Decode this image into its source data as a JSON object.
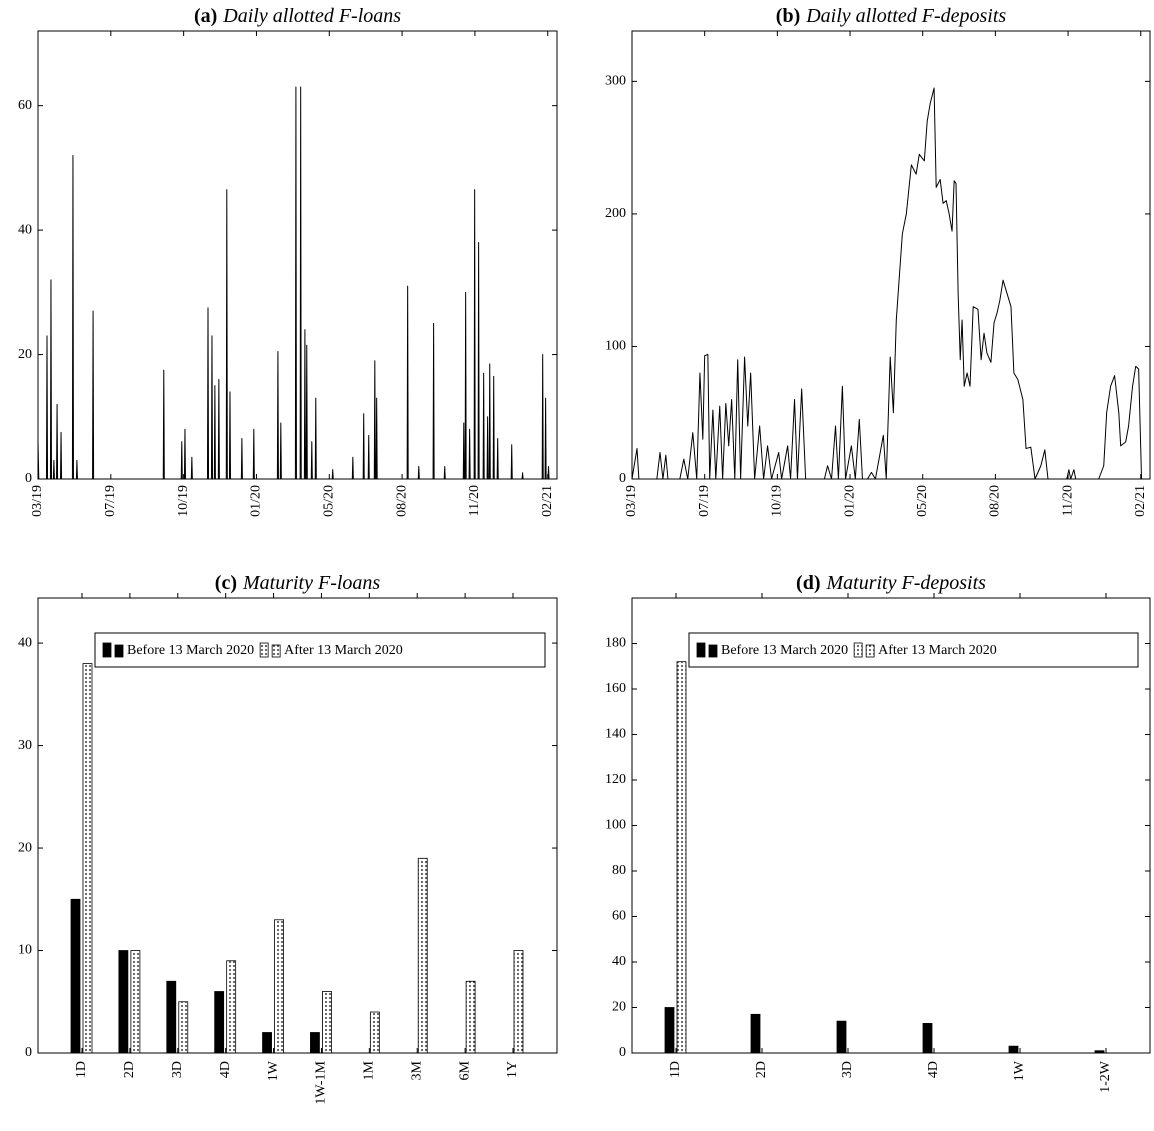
{
  "chart_data": [
    {
      "type": "line",
      "panel": "(a)",
      "title": "Daily allotted F-loans",
      "color": "#000000",
      "xlim": [
        2019.2,
        2021.16
      ],
      "ylim": [
        0,
        72
      ],
      "yticks": [
        0,
        20,
        40,
        60
      ],
      "xticks": [
        {
          "value": 2019.2,
          "label": "03/19"
        },
        {
          "value": 2019.475,
          "label": "07/19"
        },
        {
          "value": 2019.75,
          "label": "10/19"
        },
        {
          "value": 2020.025,
          "label": "01/20"
        },
        {
          "value": 2020.3,
          "label": "05/20"
        },
        {
          "value": 2020.575,
          "label": "08/20"
        },
        {
          "value": 2020.85,
          "label": "11/20"
        },
        {
          "value": 2021.125,
          "label": "02/21"
        }
      ],
      "x": [
        2019.2,
        2019.203,
        2019.232,
        2019.234,
        2019.236,
        2019.247,
        2019.249,
        2019.251,
        2019.258,
        2019.26,
        2019.262,
        2019.27,
        2019.272,
        2019.274,
        2019.285,
        2019.287,
        2019.289,
        2019.33,
        2019.332,
        2019.334,
        2019.345,
        2019.347,
        2019.349,
        2019.406,
        2019.408,
        2019.41,
        2019.673,
        2019.675,
        2019.677,
        2019.741,
        2019.743,
        2019.745,
        2019.753,
        2019.755,
        2019.757,
        2019.779,
        2019.781,
        2019.783,
        2019.84,
        2019.842,
        2019.844,
        2019.855,
        2019.857,
        2019.859,
        2019.866,
        2019.868,
        2019.87,
        2019.881,
        2019.883,
        2019.885,
        2019.911,
        2019.913,
        2019.915,
        2019.923,
        2019.925,
        2019.927,
        2019.968,
        2019.97,
        2019.972,
        2020.013,
        2020.015,
        2020.017,
        2020.104,
        2020.106,
        2020.108,
        2020.115,
        2020.117,
        2020.119,
        2020.172,
        2020.174,
        2020.176,
        2020.19,
        2020.192,
        2020.194,
        2020.206,
        2020.208,
        2020.21,
        2020.213,
        2020.215,
        2020.217,
        2020.232,
        2020.234,
        2020.236,
        2020.247,
        2020.249,
        2020.251,
        2020.311,
        2020.313,
        2020.315,
        2020.387,
        2020.389,
        2020.391,
        2020.428,
        2020.43,
        2020.432,
        2020.447,
        2020.449,
        2020.451,
        2020.47,
        2020.472,
        2020.474,
        2020.477,
        2020.479,
        2020.481,
        2020.594,
        2020.596,
        2020.598,
        2020.636,
        2020.638,
        2020.64,
        2020.692,
        2020.694,
        2020.696,
        2020.734,
        2020.736,
        2020.738,
        2020.806,
        2020.808,
        2020.81,
        2020.813,
        2020.815,
        2020.817,
        2020.828,
        2020.83,
        2020.832,
        2020.847,
        2020.849,
        2020.851,
        2020.862,
        2020.864,
        2020.866,
        2020.881,
        2020.883,
        2020.885,
        2020.896,
        2020.898,
        2020.9,
        2020.904,
        2020.906,
        2020.908,
        2020.919,
        2020.921,
        2020.923,
        2020.934,
        2020.936,
        2020.938,
        2020.987,
        2020.989,
        2020.991,
        2021.028,
        2021.03,
        2021.032,
        2021.104,
        2021.106,
        2021.108,
        2021.115,
        2021.117,
        2021.119,
        2021.126,
        2021.128,
        2021.13,
        2021.16
      ],
      "values": [
        6,
        0,
        0,
        23,
        0,
        0,
        32,
        0,
        0,
        3,
        0,
        0,
        12,
        0,
        0,
        7.5,
        0,
        0,
        52,
        0,
        0,
        3,
        0,
        0,
        27,
        0,
        0,
        17.5,
        0,
        0,
        6,
        0,
        0,
        8,
        0,
        0,
        3.5,
        0,
        0,
        27.5,
        0,
        0,
        23,
        0,
        0,
        15,
        0,
        0,
        16,
        0,
        0,
        46.5,
        0,
        0,
        14,
        0,
        0,
        6.5,
        0,
        0,
        8,
        0,
        0,
        20.5,
        0,
        0,
        9,
        0,
        0,
        63,
        0,
        0,
        63,
        0,
        0,
        24,
        0,
        0,
        21.5,
        0,
        0,
        6,
        0,
        0,
        13,
        0,
        0,
        1.5,
        0,
        0,
        3.5,
        0,
        0,
        10.5,
        0,
        0,
        7,
        0,
        0,
        19,
        0,
        0,
        13,
        0,
        0,
        31,
        0,
        0,
        2,
        0,
        0,
        25,
        0,
        0,
        2,
        0,
        0,
        9,
        0,
        0,
        30,
        0,
        0,
        8,
        0,
        0,
        46.5,
        0,
        0,
        38,
        0,
        0,
        17,
        0,
        0,
        10,
        0,
        0,
        18.5,
        0,
        0,
        16.5,
        0,
        0,
        6.5,
        0,
        0,
        5.5,
        0,
        0,
        1,
        0,
        0,
        20,
        0,
        0,
        13,
        0,
        0,
        2,
        0,
        0
      ]
    },
    {
      "type": "line",
      "panel": "(b)",
      "title": "Daily allotted F-deposits",
      "color": "#000000",
      "xlim": [
        2019.2,
        2021.16
      ],
      "ylim": [
        0,
        338
      ],
      "yticks": [
        0,
        100,
        200,
        300
      ],
      "xticks": [
        {
          "value": 2019.2,
          "label": "03/19"
        },
        {
          "value": 2019.475,
          "label": "07/19"
        },
        {
          "value": 2019.75,
          "label": "10/19"
        },
        {
          "value": 2020.025,
          "label": "01/20"
        },
        {
          "value": 2020.3,
          "label": "05/20"
        },
        {
          "value": 2020.575,
          "label": "08/20"
        },
        {
          "value": 2020.85,
          "label": "11/20"
        },
        {
          "value": 2021.125,
          "label": "02/21"
        }
      ],
      "x": [
        2019.2,
        2019.219,
        2019.226,
        2019.294,
        2019.306,
        2019.317,
        2019.328,
        2019.336,
        2019.381,
        2019.396,
        2019.411,
        2019.43,
        2019.445,
        2019.457,
        2019.468,
        2019.475,
        2019.487,
        2019.494,
        2019.506,
        2019.517,
        2019.532,
        2019.543,
        2019.555,
        2019.566,
        2019.577,
        2019.589,
        2019.6,
        2019.611,
        2019.626,
        2019.638,
        2019.649,
        2019.664,
        2019.683,
        2019.698,
        2019.713,
        2019.728,
        2019.755,
        2019.766,
        2019.789,
        2019.8,
        2019.815,
        2019.826,
        2019.842,
        2019.857,
        2019.928,
        2019.94,
        2019.955,
        2019.97,
        2019.981,
        2019.996,
        2020.008,
        2020.03,
        2020.045,
        2020.06,
        2020.072,
        2020.091,
        2020.106,
        2020.121,
        2020.151,
        2020.162,
        2020.177,
        2020.189,
        2020.2,
        2020.223,
        2020.238,
        2020.257,
        2020.275,
        2020.287,
        2020.306,
        2020.317,
        2020.328,
        2020.343,
        2020.351,
        2020.366,
        2020.377,
        2020.389,
        2020.4,
        2020.411,
        2020.419,
        2020.426,
        2020.434,
        2020.442,
        2020.449,
        2020.457,
        2020.468,
        2020.479,
        2020.491,
        2020.509,
        2020.521,
        2020.532,
        2020.543,
        2020.558,
        2020.57,
        2020.581,
        2020.592,
        2020.604,
        2020.619,
        2020.634,
        2020.645,
        2020.66,
        2020.679,
        2020.691,
        2020.709,
        2020.725,
        2020.747,
        2020.762,
        2020.774,
        2020.845,
        2020.853,
        2020.86,
        2020.872,
        2020.879,
        2020.966,
        2020.985,
        2020.996,
        2021.011,
        2021.026,
        2021.042,
        2021.049,
        2021.068,
        2021.079,
        2021.094,
        2021.106,
        2021.117,
        2021.128
      ],
      "values": [
        0,
        23,
        0,
        0,
        20,
        0,
        18,
        0,
        0,
        15,
        0,
        35,
        0,
        80,
        30,
        93,
        94,
        0,
        52,
        0,
        55,
        0,
        57,
        25,
        60,
        0,
        90,
        0,
        92,
        40,
        80,
        0,
        40,
        0,
        25,
        0,
        20,
        0,
        25,
        0,
        60,
        0,
        68,
        0,
        0,
        10,
        0,
        40,
        0,
        70,
        0,
        25,
        0,
        45,
        0,
        0,
        5,
        0,
        33,
        0,
        92,
        50,
        120,
        185,
        200,
        237,
        230,
        245,
        240,
        270,
        283,
        295,
        220,
        226,
        208,
        210,
        200,
        187,
        225,
        223,
        140,
        90,
        120,
        70,
        80,
        70,
        130,
        128,
        90,
        110,
        95,
        88,
        118,
        125,
        135,
        150,
        140,
        130,
        80,
        75,
        60,
        23,
        24,
        0,
        10,
        22,
        0,
        0,
        7,
        0,
        7,
        0,
        0,
        10,
        50,
        70,
        78,
        50,
        25,
        28,
        40,
        70,
        85,
        83,
        0
      ]
    },
    {
      "type": "bar",
      "panel": "(c)",
      "title": "Maturity F-loans",
      "legend_position": "top",
      "categories": [
        "1D",
        "2D",
        "3D",
        "4D",
        "1W",
        "1W-1M",
        "1M",
        "3M",
        "6M",
        "1Y"
      ],
      "ylim": [
        0,
        44.4
      ],
      "yticks": [
        0,
        10,
        20,
        30,
        40
      ],
      "series": [
        {
          "name": "Before 13 March 2020",
          "color": "#000000",
          "values": [
            15,
            10,
            7,
            6,
            2,
            2,
            0,
            0,
            0,
            0
          ]
        },
        {
          "name": "After 13 March 2020",
          "color": "#ffffff",
          "pattern": "dots",
          "values": [
            38,
            10,
            5,
            9,
            13,
            6,
            4,
            19,
            7,
            10
          ]
        }
      ]
    },
    {
      "type": "bar",
      "panel": "(d)",
      "title": "Maturity F-deposits",
      "legend_position": "top",
      "categories": [
        "1D",
        "2D",
        "3D",
        "4D",
        "1W",
        "1-2W"
      ],
      "ylim": [
        0,
        200
      ],
      "yticks": [
        0,
        20,
        40,
        60,
        80,
        100,
        120,
        140,
        160,
        180
      ],
      "series": [
        {
          "name": "Before 13 March 2020",
          "color": "#000000",
          "values": [
            20,
            17,
            14,
            13,
            3,
            1
          ]
        },
        {
          "name": "After 13 March 2020",
          "color": "#ffffff",
          "pattern": "dots",
          "values": [
            172,
            0,
            0,
            0,
            0,
            0
          ]
        }
      ]
    }
  ]
}
